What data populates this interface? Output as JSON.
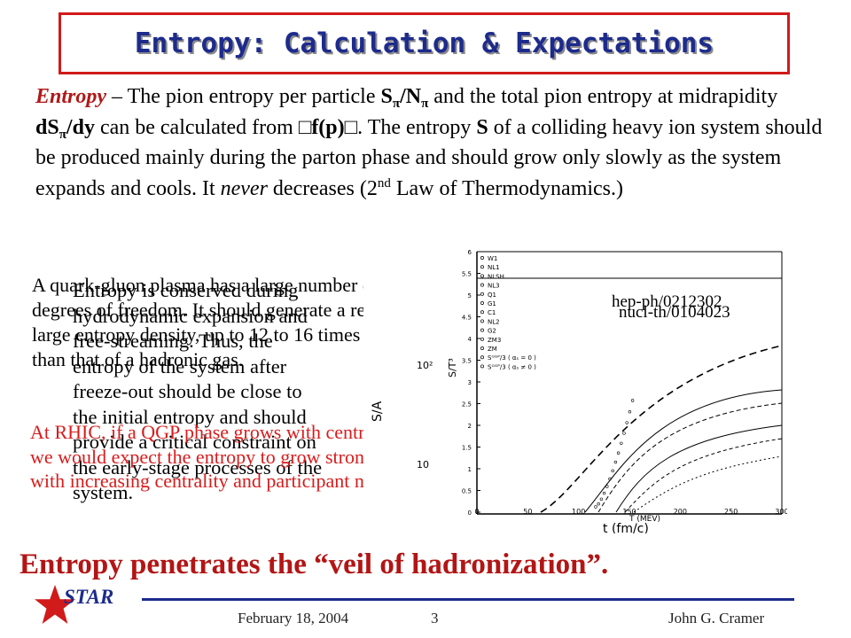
{
  "title": "Entropy: Calculation & Expectations",
  "intro": {
    "lead": "Entropy",
    "t1": " – The pion entropy per particle ",
    "sym_s": "S",
    "sym_pi": "π",
    "slash_n": "/N",
    "t2": " and the total pion entropy at midrapidity ",
    "sym_ds": "dS",
    "sym_dy": "/dy",
    "t3": " can be calculated from ",
    "fp": "f(p)",
    "t4": ".  The entropy ",
    "t5": " of a colliding heavy ion system should be produced mainly during the parton phase and should grow only slowly as the system expands and cools.  It ",
    "never": "never",
    "t6": " decreases (2",
    "nd": "nd",
    "t7": " Law of Thermodynamics.)"
  },
  "para1": "A quark-gluon plasma has a large number of degrees of freedom.  It should generate a relatively large entropy density, up to 12 to 16 times larger than that of a hadronic gas.",
  "para2": "Entropy is conserved during hydrodynamic expansion and free-streaming.  Thus, the entropy of the system after freeze-out should be close to the initial entropy and should provide a critical constraint on the early-stage processes of the system.",
  "para3": "At RHIC, if a QGP phase grows with centrality we would expect the entropy to grow strongly with increasing centrality and participant number.",
  "plot": {
    "ref1": "hep-ph/0212302",
    "ref2": "nucl-th/0104023",
    "yaxis_main": "S/A",
    "yaxis_alt": "S/T³",
    "xaxis_main": "t (fm/c)",
    "xaxis_alt": "T (MEV)",
    "yticks_left": [
      "10²",
      "10"
    ],
    "yticks_inner": [
      "6",
      "5.5",
      "5",
      "4.5",
      "4",
      "3.5",
      "3",
      "2.5",
      "2",
      "1.5",
      "1",
      "0.5",
      "0"
    ],
    "xticks": [
      "0",
      "50",
      "100",
      "150",
      "200",
      "250",
      "300"
    ],
    "legend": [
      "W1",
      "NL1",
      "NLSH",
      "NL3",
      "Q1",
      "G1",
      "C1",
      "NL2",
      "G2",
      "ZM3",
      "ZM",
      "Sᴳᴳᴾ/3 ( αₛ = 0 )",
      "Sᴳᴳᴾ/3 ( αₛ ≠ 0 )"
    ]
  },
  "headline": "Entropy penetrates the “veil of hadronization”.",
  "footer": {
    "logo": "STAR",
    "date": "February 18, 2004",
    "page": "3",
    "author": "John G. Cramer"
  },
  "colors": {
    "title_border": "#d11a1a",
    "title_text": "#1d2b8c",
    "lead_red": "#b01818",
    "red_paragraph": "#d81c1c",
    "headline": "#b31515",
    "logo_blue": "#1d2b8c",
    "star_red": "#d11a1a"
  }
}
